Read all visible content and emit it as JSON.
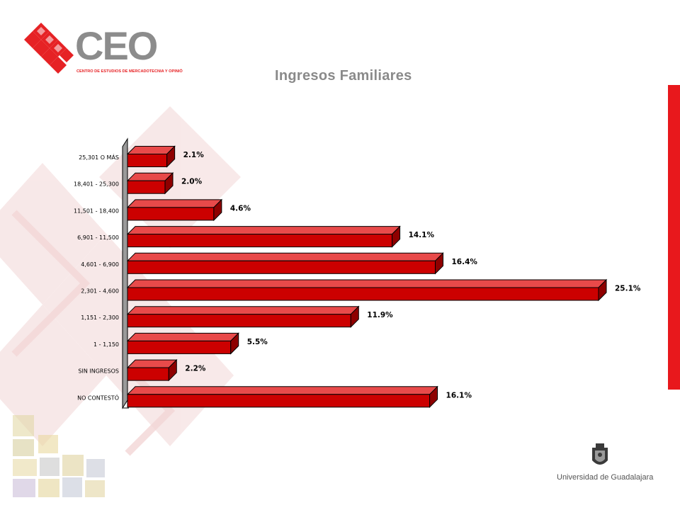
{
  "header": {
    "logo_text": "CEO",
    "logo_subtitle": "CENTRO DE ESTUDIOS DE MERCADOTECNIA Y OPINIÓN",
    "title": "Ingresos Familiares"
  },
  "footer": {
    "institution": "Universidad de Guadalajara"
  },
  "colors": {
    "bar": "#cc0000",
    "accent_strip": "#e8181c",
    "title": "#8a8a8a"
  },
  "chart_data": {
    "type": "bar",
    "orientation": "horizontal",
    "title": "",
    "categories": [
      "25,301 O MÁS",
      "18,401 - 25,300",
      "11,501 - 18,400",
      "6,901 - 11,500",
      "4,601 - 6,900",
      "2,301 - 4,600",
      "1,151 - 2,300",
      "1 - 1,150",
      "SIN INGRESOS",
      "NO CONTESTÓ"
    ],
    "values": [
      2.1,
      2.0,
      4.6,
      14.1,
      16.4,
      25.1,
      11.9,
      5.5,
      2.2,
      16.1
    ],
    "value_labels": [
      "2.1%",
      "2.0%",
      "4.6%",
      "14.1%",
      "16.4%",
      "25.1%",
      "11.9%",
      "5.5%",
      "2.2%",
      "16.1%"
    ],
    "xlim": [
      0,
      25.1
    ],
    "grid": false,
    "style": "3d"
  }
}
